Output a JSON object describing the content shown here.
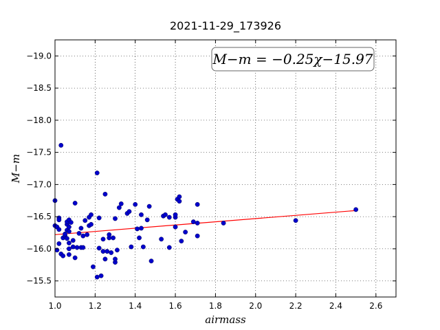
{
  "chart_data": {
    "type": "scatter",
    "title": "2021-11-29_173926",
    "xlabel": "airmass",
    "ylabel": "M−m",
    "xlim": [
      1.0,
      2.7
    ],
    "ylim": [
      -19.25,
      -15.25
    ],
    "y_inverted": true,
    "grid": true,
    "x_ticks": [
      "1.0",
      "1.2",
      "1.4",
      "1.6",
      "1.8",
      "2.0",
      "2.2",
      "2.4",
      "2.6"
    ],
    "y_ticks": [
      "−15.5",
      "−16.0",
      "−16.5",
      "−17.0",
      "−17.5",
      "−18.0",
      "−18.5",
      "−19.0"
    ],
    "annotation": "M−m = −0.25χ−15.97",
    "fit_line": {
      "slope": -0.25,
      "intercept": -15.97,
      "x_range": [
        1.0,
        2.5
      ],
      "color": "#ff0000"
    },
    "marker_color": "#0000cc",
    "points": [
      [
        1.0,
        -16.36
      ],
      [
        1.0,
        -16.75
      ],
      [
        1.01,
        -16.34
      ],
      [
        1.01,
        -15.98
      ],
      [
        1.02,
        -16.3
      ],
      [
        1.02,
        -16.48
      ],
      [
        1.02,
        -16.45
      ],
      [
        1.02,
        -16.08
      ],
      [
        1.03,
        -15.92
      ],
      [
        1.03,
        -17.61
      ],
      [
        1.04,
        -15.89
      ],
      [
        1.04,
        -16.17
      ],
      [
        1.05,
        -16.2
      ],
      [
        1.05,
        -16.23
      ],
      [
        1.06,
        -16.16
      ],
      [
        1.06,
        -16.29
      ],
      [
        1.06,
        -16.38
      ],
      [
        1.06,
        -16.42
      ],
      [
        1.07,
        -16.09
      ],
      [
        1.07,
        -16.27
      ],
      [
        1.07,
        -16.34
      ],
      [
        1.07,
        -16.45
      ],
      [
        1.07,
        -15.91
      ],
      [
        1.07,
        -16.0
      ],
      [
        1.08,
        -16.41
      ],
      [
        1.09,
        -16.03
      ],
      [
        1.09,
        -16.13
      ],
      [
        1.1,
        -15.86
      ],
      [
        1.1,
        -16.71
      ],
      [
        1.11,
        -16.02
      ],
      [
        1.12,
        -16.24
      ],
      [
        1.13,
        -16.02
      ],
      [
        1.13,
        -16.32
      ],
      [
        1.14,
        -16.02
      ],
      [
        1.14,
        -16.2
      ],
      [
        1.15,
        -16.44
      ],
      [
        1.16,
        -16.22
      ],
      [
        1.17,
        -16.36
      ],
      [
        1.17,
        -16.49
      ],
      [
        1.18,
        -16.38
      ],
      [
        1.18,
        -16.53
      ],
      [
        1.19,
        -15.72
      ],
      [
        1.21,
        -15.56
      ],
      [
        1.21,
        -17.18
      ],
      [
        1.22,
        -16.48
      ],
      [
        1.22,
        -16.01
      ],
      [
        1.23,
        -15.58
      ],
      [
        1.24,
        -15.96
      ],
      [
        1.24,
        -16.15
      ],
      [
        1.25,
        -15.84
      ],
      [
        1.25,
        -16.85
      ],
      [
        1.26,
        -15.96
      ],
      [
        1.27,
        -16.17
      ],
      [
        1.27,
        -16.22
      ],
      [
        1.28,
        -15.94
      ],
      [
        1.29,
        -16.17
      ],
      [
        1.3,
        -15.79
      ],
      [
        1.3,
        -15.84
      ],
      [
        1.3,
        -16.47
      ],
      [
        1.31,
        -15.98
      ],
      [
        1.32,
        -16.64
      ],
      [
        1.33,
        -16.7
      ],
      [
        1.36,
        -16.55
      ],
      [
        1.37,
        -16.58
      ],
      [
        1.38,
        -16.03
      ],
      [
        1.4,
        -16.69
      ],
      [
        1.41,
        -16.31
      ],
      [
        1.42,
        -16.17
      ],
      [
        1.43,
        -16.32
      ],
      [
        1.43,
        -16.53
      ],
      [
        1.44,
        -16.03
      ],
      [
        1.46,
        -16.45
      ],
      [
        1.47,
        -16.66
      ],
      [
        1.48,
        -15.81
      ],
      [
        1.53,
        -16.15
      ],
      [
        1.54,
        -16.51
      ],
      [
        1.55,
        -16.53
      ],
      [
        1.57,
        -16.02
      ],
      [
        1.57,
        -16.49
      ],
      [
        1.6,
        -16.34
      ],
      [
        1.6,
        -16.49
      ],
      [
        1.6,
        -16.53
      ],
      [
        1.61,
        -16.77
      ],
      [
        1.62,
        -16.74
      ],
      [
        1.62,
        -16.81
      ],
      [
        1.63,
        -16.12
      ],
      [
        1.65,
        -16.26
      ],
      [
        1.69,
        -16.42
      ],
      [
        1.71,
        -16.2
      ],
      [
        1.71,
        -16.4
      ],
      [
        1.71,
        -16.69
      ],
      [
        1.84,
        -16.4
      ],
      [
        2.2,
        -16.44
      ],
      [
        2.5,
        -16.61
      ]
    ]
  }
}
